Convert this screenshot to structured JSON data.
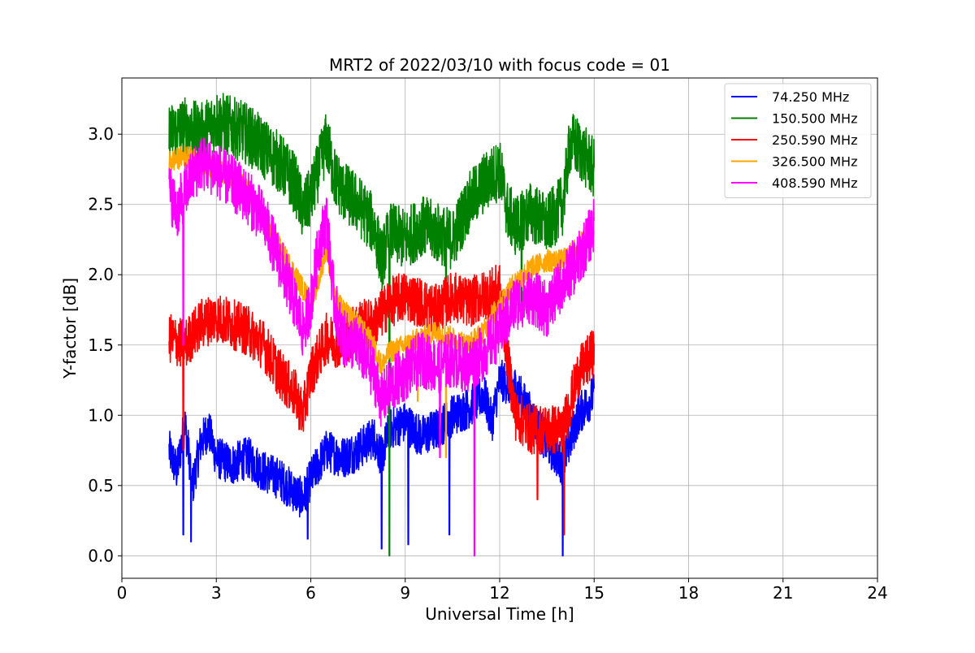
{
  "chart_data": {
    "type": "line",
    "title": "MRT2 of 2022/03/10 with focus code = 01",
    "xlabel": "Universal Time [h]",
    "ylabel": "Y-factor [dB]",
    "xlim": [
      0,
      24
    ],
    "ylim": [
      -0.16,
      3.4
    ],
    "xticks": [
      0,
      3,
      6,
      9,
      12,
      15,
      18,
      21,
      24
    ],
    "xtick_labels": [
      "0",
      "3",
      "6",
      "9",
      "12",
      "15",
      "18",
      "21",
      "24"
    ],
    "yticks": [
      0.0,
      0.5,
      1.0,
      1.5,
      2.0,
      2.5,
      3.0
    ],
    "ytick_labels": [
      "0.0",
      "0.5",
      "1.0",
      "1.5",
      "2.0",
      "2.5",
      "3.0"
    ],
    "grid": true,
    "legend_position": "top-right",
    "series": [
      {
        "name": " 74.250 MHz",
        "color": "#0000ff",
        "x": [
          1.5,
          1.75,
          2.0,
          2.25,
          2.5,
          2.75,
          3.0,
          3.5,
          4.0,
          4.5,
          5.0,
          5.5,
          5.75,
          6.0,
          6.25,
          6.5,
          7.0,
          7.5,
          8.0,
          8.25,
          8.5,
          9.0,
          9.5,
          10.0,
          10.5,
          11.0,
          11.5,
          11.75,
          12.0,
          12.5,
          13.0,
          13.5,
          14.0,
          14.5,
          15.0
        ],
        "y": [
          0.75,
          0.6,
          0.95,
          0.5,
          0.8,
          0.9,
          0.7,
          0.65,
          0.7,
          0.6,
          0.55,
          0.45,
          0.4,
          0.55,
          0.65,
          0.75,
          0.7,
          0.75,
          0.85,
          0.7,
          0.9,
          0.95,
          0.85,
          0.9,
          1.0,
          1.05,
          1.15,
          0.95,
          1.25,
          1.2,
          1.0,
          0.8,
          0.65,
          1.0,
          1.15
        ],
        "noise": 0.15,
        "dips": [
          [
            1.95,
            0.15
          ],
          [
            2.2,
            0.1
          ],
          [
            5.9,
            0.12
          ],
          [
            8.25,
            0.05
          ],
          [
            9.1,
            0.08
          ],
          [
            10.4,
            0.15
          ],
          [
            14.0,
            0.0
          ]
        ]
      },
      {
        "name": "150.500 MHz",
        "color": "#008000",
        "x": [
          1.5,
          2.0,
          2.5,
          3.0,
          3.5,
          4.0,
          4.5,
          5.0,
          5.5,
          5.75,
          6.0,
          6.25,
          6.5,
          6.75,
          7.0,
          7.5,
          8.0,
          8.25,
          8.5,
          9.0,
          9.5,
          10.0,
          10.5,
          11.0,
          11.5,
          12.0,
          12.25,
          12.5,
          13.0,
          13.5,
          14.0,
          14.25,
          14.5,
          15.0
        ],
        "y": [
          3.0,
          3.05,
          3.0,
          3.1,
          3.05,
          3.0,
          2.9,
          2.8,
          2.65,
          2.45,
          2.55,
          2.75,
          2.95,
          2.7,
          2.6,
          2.5,
          2.35,
          2.1,
          2.3,
          2.25,
          2.35,
          2.3,
          2.25,
          2.5,
          2.65,
          2.75,
          2.45,
          2.35,
          2.45,
          2.35,
          2.5,
          2.95,
          2.9,
          2.75
        ],
        "noise": 0.22,
        "dips": [
          [
            8.5,
            0.0
          ],
          [
            10.3,
            1.75
          ],
          [
            12.7,
            1.7
          ]
        ]
      },
      {
        "name": "250.590 MHz",
        "color": "#ff0000",
        "x": [
          1.5,
          2.0,
          2.5,
          3.0,
          3.5,
          4.0,
          4.5,
          5.0,
          5.5,
          5.75,
          6.0,
          6.5,
          7.0,
          7.5,
          8.0,
          8.5,
          9.0,
          9.5,
          10.0,
          10.5,
          11.0,
          11.5,
          12.0,
          12.25,
          12.5,
          13.0,
          13.5,
          14.0,
          14.5,
          15.0
        ],
        "y": [
          1.55,
          1.5,
          1.65,
          1.7,
          1.65,
          1.6,
          1.5,
          1.3,
          1.15,
          1.0,
          1.3,
          1.55,
          1.5,
          1.65,
          1.65,
          1.8,
          1.85,
          1.8,
          1.75,
          1.85,
          1.8,
          1.85,
          1.9,
          1.4,
          1.0,
          0.9,
          0.9,
          0.9,
          1.3,
          1.45
        ],
        "noise": 0.18,
        "dips": [
          [
            1.95,
            0.75
          ],
          [
            13.2,
            0.4
          ],
          [
            14.05,
            0.15
          ]
        ]
      },
      {
        "name": "326.500 MHz",
        "color": "#ffa500",
        "x": [
          1.5,
          2.0,
          2.5,
          3.0,
          3.5,
          4.0,
          4.5,
          5.0,
          5.5,
          6.0,
          6.25,
          6.5,
          6.75,
          7.0,
          7.5,
          8.0,
          8.25,
          8.5,
          9.0,
          9.5,
          10.0,
          10.5,
          11.0,
          11.5,
          12.0,
          12.5,
          13.0,
          13.5,
          14.0,
          14.5,
          15.0
        ],
        "y": [
          2.8,
          2.85,
          2.8,
          2.75,
          2.7,
          2.6,
          2.4,
          2.2,
          2.0,
          1.8,
          1.95,
          2.2,
          1.85,
          1.75,
          1.65,
          1.5,
          1.35,
          1.45,
          1.5,
          1.55,
          1.6,
          1.55,
          1.5,
          1.6,
          1.8,
          1.95,
          2.05,
          2.1,
          2.1,
          2.2,
          2.35
        ],
        "noise": 0.08,
        "dips": [
          [
            9.4,
            1.1
          ],
          [
            10.3,
            0.7
          ]
        ]
      },
      {
        "name": "408.590 MHz",
        "color": "#ff00ff",
        "x": [
          1.5,
          1.75,
          2.0,
          2.5,
          3.0,
          3.5,
          4.0,
          4.5,
          5.0,
          5.5,
          5.75,
          6.0,
          6.25,
          6.5,
          6.75,
          7.0,
          7.5,
          8.0,
          8.25,
          8.5,
          9.0,
          9.5,
          10.0,
          10.5,
          11.0,
          11.5,
          12.0,
          12.5,
          13.0,
          13.5,
          14.0,
          14.5,
          15.0
        ],
        "y": [
          2.6,
          2.45,
          2.6,
          2.8,
          2.75,
          2.65,
          2.55,
          2.4,
          2.1,
          1.8,
          1.6,
          1.8,
          2.2,
          2.4,
          1.8,
          1.55,
          1.5,
          1.3,
          1.1,
          1.2,
          1.3,
          1.4,
          1.35,
          1.4,
          1.35,
          1.45,
          1.6,
          1.8,
          1.85,
          1.75,
          1.95,
          2.1,
          2.35
        ],
        "noise": 0.2,
        "dips": [
          [
            1.95,
            1.5
          ],
          [
            11.2,
            0.0
          ],
          [
            10.1,
            0.7
          ]
        ]
      }
    ]
  }
}
